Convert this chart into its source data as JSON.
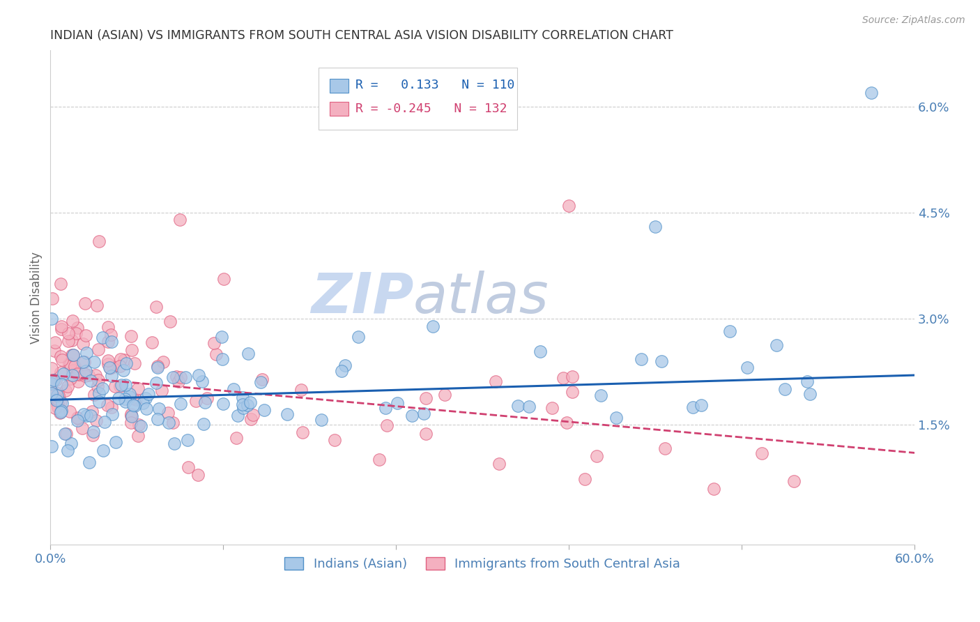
{
  "title": "INDIAN (ASIAN) VS IMMIGRANTS FROM SOUTH CENTRAL ASIA VISION DISABILITY CORRELATION CHART",
  "source": "Source: ZipAtlas.com",
  "ylabel": "Vision Disability",
  "xlim": [
    0.0,
    0.6
  ],
  "ylim": [
    -0.002,
    0.068
  ],
  "plot_ylim": [
    0.0,
    0.065
  ],
  "yticks": [
    0.015,
    0.03,
    0.045,
    0.06
  ],
  "ytick_labels": [
    "1.5%",
    "3.0%",
    "4.5%",
    "6.0%"
  ],
  "xticks": [
    0.0,
    0.12,
    0.24,
    0.36,
    0.48,
    0.6
  ],
  "xtick_labels": [
    "0.0%",
    "",
    "",
    "",
    "",
    "60.0%"
  ],
  "blue_R": 0.133,
  "blue_N": 110,
  "pink_R": -0.245,
  "pink_N": 132,
  "blue_color": "#a8c8e8",
  "pink_color": "#f4b0c0",
  "blue_edge_color": "#5090c8",
  "pink_edge_color": "#e06080",
  "blue_line_color": "#1a5fb0",
  "pink_line_color": "#d04070",
  "title_color": "#333333",
  "axis_label_color": "#4a7fb5",
  "watermark_zip_color": "#c8d8f0",
  "watermark_atlas_color": "#c0cce0",
  "background_color": "#ffffff",
  "legend_label_blue": "Indians (Asian)",
  "legend_label_pink": "Immigrants from South Central Asia",
  "grid_color": "#cccccc",
  "blue_line_start_y": 0.0185,
  "blue_line_end_y": 0.022,
  "pink_line_start_y": 0.022,
  "pink_line_end_y": 0.011
}
